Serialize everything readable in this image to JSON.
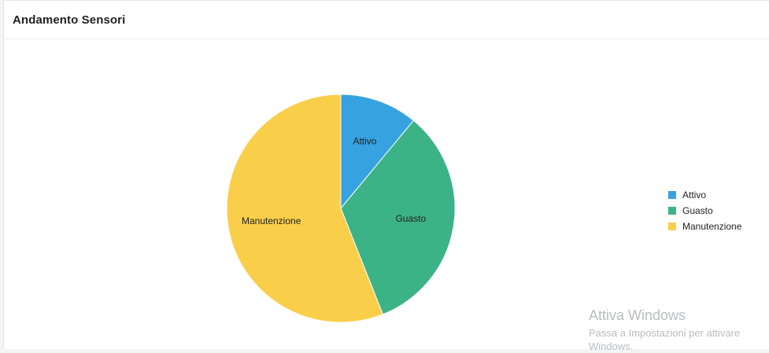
{
  "header": {
    "title": "Andamento Sensori"
  },
  "chart_data": {
    "type": "pie",
    "title": "Andamento Sensori",
    "legend_position": "right",
    "slices": [
      {
        "label": "Attivo",
        "value": 11,
        "color": "#36a2e0"
      },
      {
        "label": "Guasto",
        "value": 33,
        "color": "#3cb386"
      },
      {
        "label": "Manutenzione",
        "value": 56,
        "color": "#f9cf4a"
      }
    ]
  },
  "watermark": {
    "title": "Attiva Windows",
    "subtitle": "Passa a Impostazioni per attivare Windows."
  }
}
